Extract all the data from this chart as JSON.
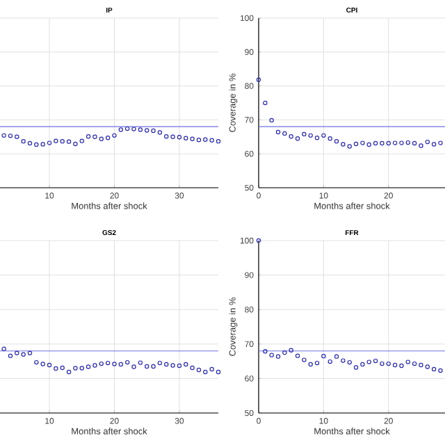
{
  "chart_data": [
    {
      "type": "scatter",
      "title": "IP",
      "xlabel": "Months after shock",
      "marker": "circle",
      "grid": true,
      "tick_labels": "x",
      "xlim": [
        2.4,
        36
      ],
      "xticks": [
        10,
        20,
        30
      ],
      "ylim": [
        50,
        100
      ],
      "yticks": [
        50,
        60,
        70,
        80,
        90,
        100
      ],
      "ref_lines": [
        {
          "axis": "y",
          "value": 68,
          "color": "#7070e0"
        }
      ],
      "series": [
        {
          "color": "#2a2ab5",
          "x": [
            3,
            4,
            5,
            6,
            7,
            8,
            9,
            10,
            11,
            12,
            13,
            14,
            15,
            16,
            17,
            18,
            19,
            20,
            21,
            22,
            23,
            24,
            25,
            26,
            27,
            28,
            29,
            30,
            31,
            32,
            33,
            34,
            35,
            36
          ],
          "values": [
            65.4,
            65.3,
            65.0,
            63.7,
            63.1,
            62.7,
            62.8,
            63.2,
            63.8,
            63.7,
            63.6,
            62.9,
            63.8,
            65.1,
            65.0,
            64.4,
            64.7,
            65.4,
            67.1,
            67.4,
            67.3,
            67.1,
            66.9,
            66.8,
            66.3,
            65.1,
            65.0,
            64.9,
            64.6,
            64.4,
            64.1,
            64.2,
            64.0,
            63.7
          ]
        }
      ]
    },
    {
      "type": "scatter",
      "title": "CPI",
      "xlabel": "Months after shock",
      "ylabel": "Coverage in %",
      "marker": "circle",
      "grid": true,
      "xlim": [
        0,
        28.7
      ],
      "xticks": [
        0,
        10,
        20
      ],
      "ylim": [
        50,
        100
      ],
      "yticks": [
        50,
        60,
        70,
        80,
        90,
        100
      ],
      "ref_lines": [
        {
          "axis": "y",
          "value": 68,
          "color": "#7070e0"
        }
      ],
      "series": [
        {
          "color": "#2a2ab5",
          "x": [
            0,
            1,
            2,
            3,
            4,
            5,
            6,
            7,
            8,
            9,
            10,
            11,
            12,
            13,
            14,
            15,
            16,
            17,
            18,
            19,
            20,
            21,
            22,
            23,
            24,
            25,
            26,
            27,
            28
          ],
          "values": [
            81.8,
            75.0,
            69.9,
            66.4,
            66.0,
            65.1,
            64.5,
            65.8,
            65.4,
            64.7,
            65.4,
            64.5,
            63.7,
            62.8,
            62.2,
            62.9,
            63.2,
            62.7,
            63.1,
            63.1,
            63.1,
            63.2,
            63.2,
            63.3,
            63.1,
            62.4,
            63.5,
            62.8,
            63.2
          ]
        }
      ]
    },
    {
      "type": "scatter",
      "title": "GS2",
      "xlabel": "Months after shock",
      "marker": "circle",
      "grid": true,
      "tick_labels": "x",
      "xlim": [
        2.4,
        36
      ],
      "xticks": [
        10,
        20,
        30
      ],
      "ylim": [
        50,
        100
      ],
      "yticks": [
        50,
        60,
        70,
        80,
        90,
        100
      ],
      "ref_lines": [
        {
          "axis": "y",
          "value": 68,
          "color": "#7070e0"
        }
      ],
      "series": [
        {
          "color": "#2a2ab5",
          "x": [
            3,
            4,
            5,
            6,
            7,
            8,
            9,
            10,
            11,
            12,
            13,
            14,
            15,
            16,
            17,
            18,
            19,
            20,
            21,
            22,
            23,
            24,
            25,
            26,
            27,
            28,
            29,
            30,
            31,
            32,
            33,
            34,
            35,
            36
          ],
          "values": [
            68.6,
            66.6,
            67.4,
            67.0,
            67.4,
            64.7,
            64.2,
            63.9,
            62.9,
            63.1,
            61.9,
            63.0,
            63.0,
            63.4,
            63.8,
            64.3,
            64.5,
            64.2,
            64.1,
            64.7,
            63.4,
            64.6,
            63.5,
            63.5,
            64.5,
            64.1,
            63.8,
            63.7,
            64.1,
            63.1,
            62.5,
            61.9,
            62.7,
            61.9
          ]
        }
      ]
    },
    {
      "type": "scatter",
      "title": "FFR",
      "xlabel": "Months after shock",
      "ylabel": "Coverage in %",
      "marker": "circle",
      "grid": true,
      "xlim": [
        0,
        28.7
      ],
      "xticks": [
        0,
        10,
        20
      ],
      "ylim": [
        50,
        100
      ],
      "yticks": [
        50,
        60,
        70,
        80,
        90,
        100
      ],
      "ref_lines": [
        {
          "axis": "y",
          "value": 68,
          "color": "#7070e0"
        }
      ],
      "series": [
        {
          "color": "#2a2ab5",
          "x": [
            0,
            1,
            2,
            3,
            4,
            5,
            6,
            7,
            8,
            9,
            10,
            11,
            12,
            13,
            14,
            15,
            16,
            17,
            18,
            19,
            20,
            21,
            22,
            23,
            24,
            25,
            26,
            27,
            28
          ],
          "values": [
            100,
            67.9,
            66.8,
            66.4,
            67.5,
            68.2,
            66.6,
            65.4,
            64.1,
            64.5,
            66.5,
            64.9,
            66.4,
            65.2,
            64.7,
            63.2,
            64.1,
            64.8,
            65.1,
            64.3,
            64.3,
            63.9,
            63.7,
            64.8,
            64.3,
            63.9,
            63.4,
            62.7,
            62.3
          ]
        }
      ]
    }
  ]
}
